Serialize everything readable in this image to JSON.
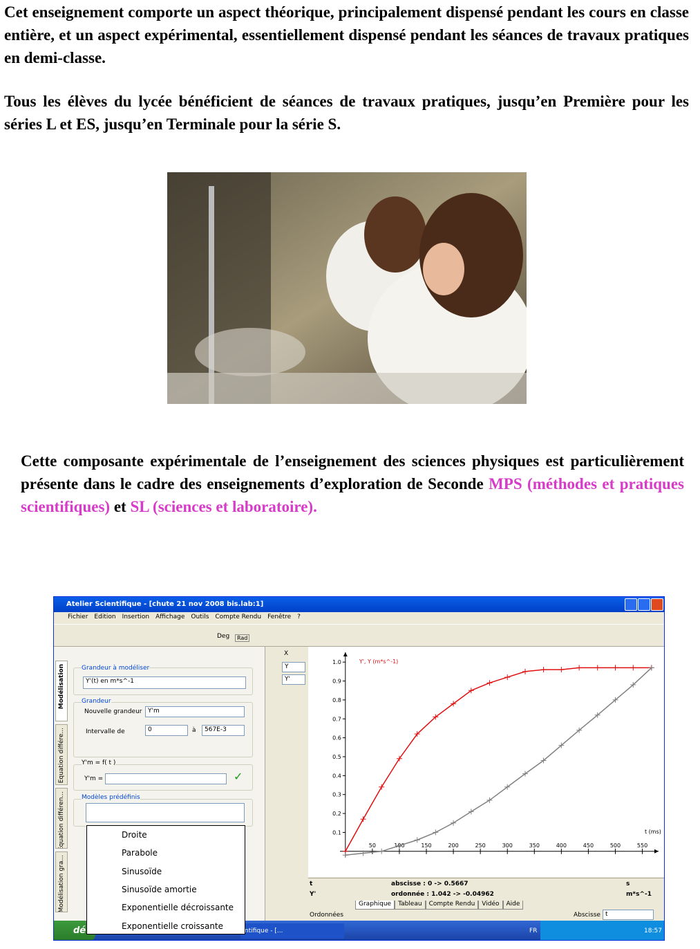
{
  "paragraphs": [
    "Cet enseignement comporte un aspect théorique, principalement dispensé pendant les cours en classe entière, et un aspect expérimental, essentiellement dispensé pendant les séances de travaux pratiques en demi-classe.",
    "Tous les élèves du lycée bénéficient de séances de travaux pratiques, jusqu’en Première pour les séries L et ES, jusqu’en Terminale pour la série S."
  ],
  "paragraph3": {
    "text": "Cette composante expérimentale de l’enseignement des sciences physiques est particulièrement présente dans le cadre des enseignements d’exploration de Seconde ",
    "highlight1": "MPS (méthodes et pratiques scientifiques)",
    "between": " et ",
    "highlight2": "SL (sciences et laboratoire)."
  },
  "screenshot": {
    "window_title": "Atelier Scientifique - [chute 21 nov 2008 bis.lab:1]",
    "menu": [
      "Fichier",
      "Edition",
      "Insertion",
      "Affichage",
      "Outils",
      "Compte Rendu",
      "Fenêtre",
      "?"
    ],
    "toolbar_labels": [
      "Deg",
      "Rad"
    ],
    "side_tabs": [
      "Modélisation",
      "Equation différe...",
      "Equation différen...",
      "Modélisation gra..."
    ],
    "panel": {
      "group1": "Grandeur à modéliser",
      "select1": "Y'(t) en m*s^-1",
      "group2": "Grandeur",
      "new_label": "Nouvelle grandeur",
      "new_value": "Y'm",
      "interval_label": "Intervalle de",
      "interval_from": "0",
      "interval_to_label": "à",
      "interval_to": "567E-3",
      "group3": "Y'm = f( t )",
      "formula_label": "Y'm =",
      "group4": "Modèles prédéfinis"
    },
    "models": [
      "Droite",
      "Parabole",
      "Sinusoïde",
      "Sinusoïde amortie",
      "Exponentielle décroissante",
      "Exponentielle croissante"
    ],
    "axis_selectors": [
      "X",
      "Y",
      "Y'"
    ],
    "chart_data": {
      "type": "line",
      "legend_title": "Y', Y (m*s^-1)",
      "x_label": "t (ms)",
      "xlim": [
        -10,
        580
      ],
      "ylim": [
        -0.03,
        1.03
      ],
      "xticks": [
        50,
        100,
        150,
        200,
        250,
        300,
        350,
        400,
        450,
        500,
        550
      ],
      "yticks": [
        0.1,
        0.2,
        0.3,
        0.4,
        0.5,
        0.6,
        0.7,
        0.8,
        0.9,
        {
          "value": 1,
          "label": "1.0"
        }
      ],
      "x": [
        0,
        33,
        67,
        100,
        133,
        167,
        200,
        233,
        267,
        300,
        333,
        367,
        400,
        433,
        467,
        500,
        533,
        567
      ],
      "series": [
        {
          "color": "#e01010",
          "values": [
            0,
            0.17,
            0.34,
            0.49,
            0.62,
            0.71,
            0.78,
            0.85,
            0.89,
            0.92,
            0.95,
            0.96,
            0.96,
            0.97,
            0.97,
            0.97,
            0.97,
            0.97
          ]
        },
        {
          "color": "#808080",
          "values": [
            -0.02,
            -0.01,
            0,
            0.03,
            0.06,
            0.1,
            0.15,
            0.21,
            0.27,
            0.34,
            0.41,
            0.48,
            0.56,
            0.64,
            0.72,
            0.8,
            0.88,
            0.97
          ]
        }
      ]
    },
    "status": {
      "row1": [
        "t",
        "abscisse : 0 -> 0.5667",
        "s"
      ],
      "row2": [
        "Y'",
        "ordonnée : 1.042 -> -0.04962",
        "m*s^-1"
      ]
    },
    "bottom_tabs": [
      "Graphique",
      "Tableau",
      "Compte Rendu",
      "Vidéo",
      "Aide"
    ],
    "footer": {
      "left": "Ordonnées",
      "right_label": "Abscisse",
      "right_value": "t"
    },
    "taskbar": {
      "start": "dé",
      "task": "ntifique - [...",
      "lang": "FR",
      "clock": "18:57"
    }
  }
}
